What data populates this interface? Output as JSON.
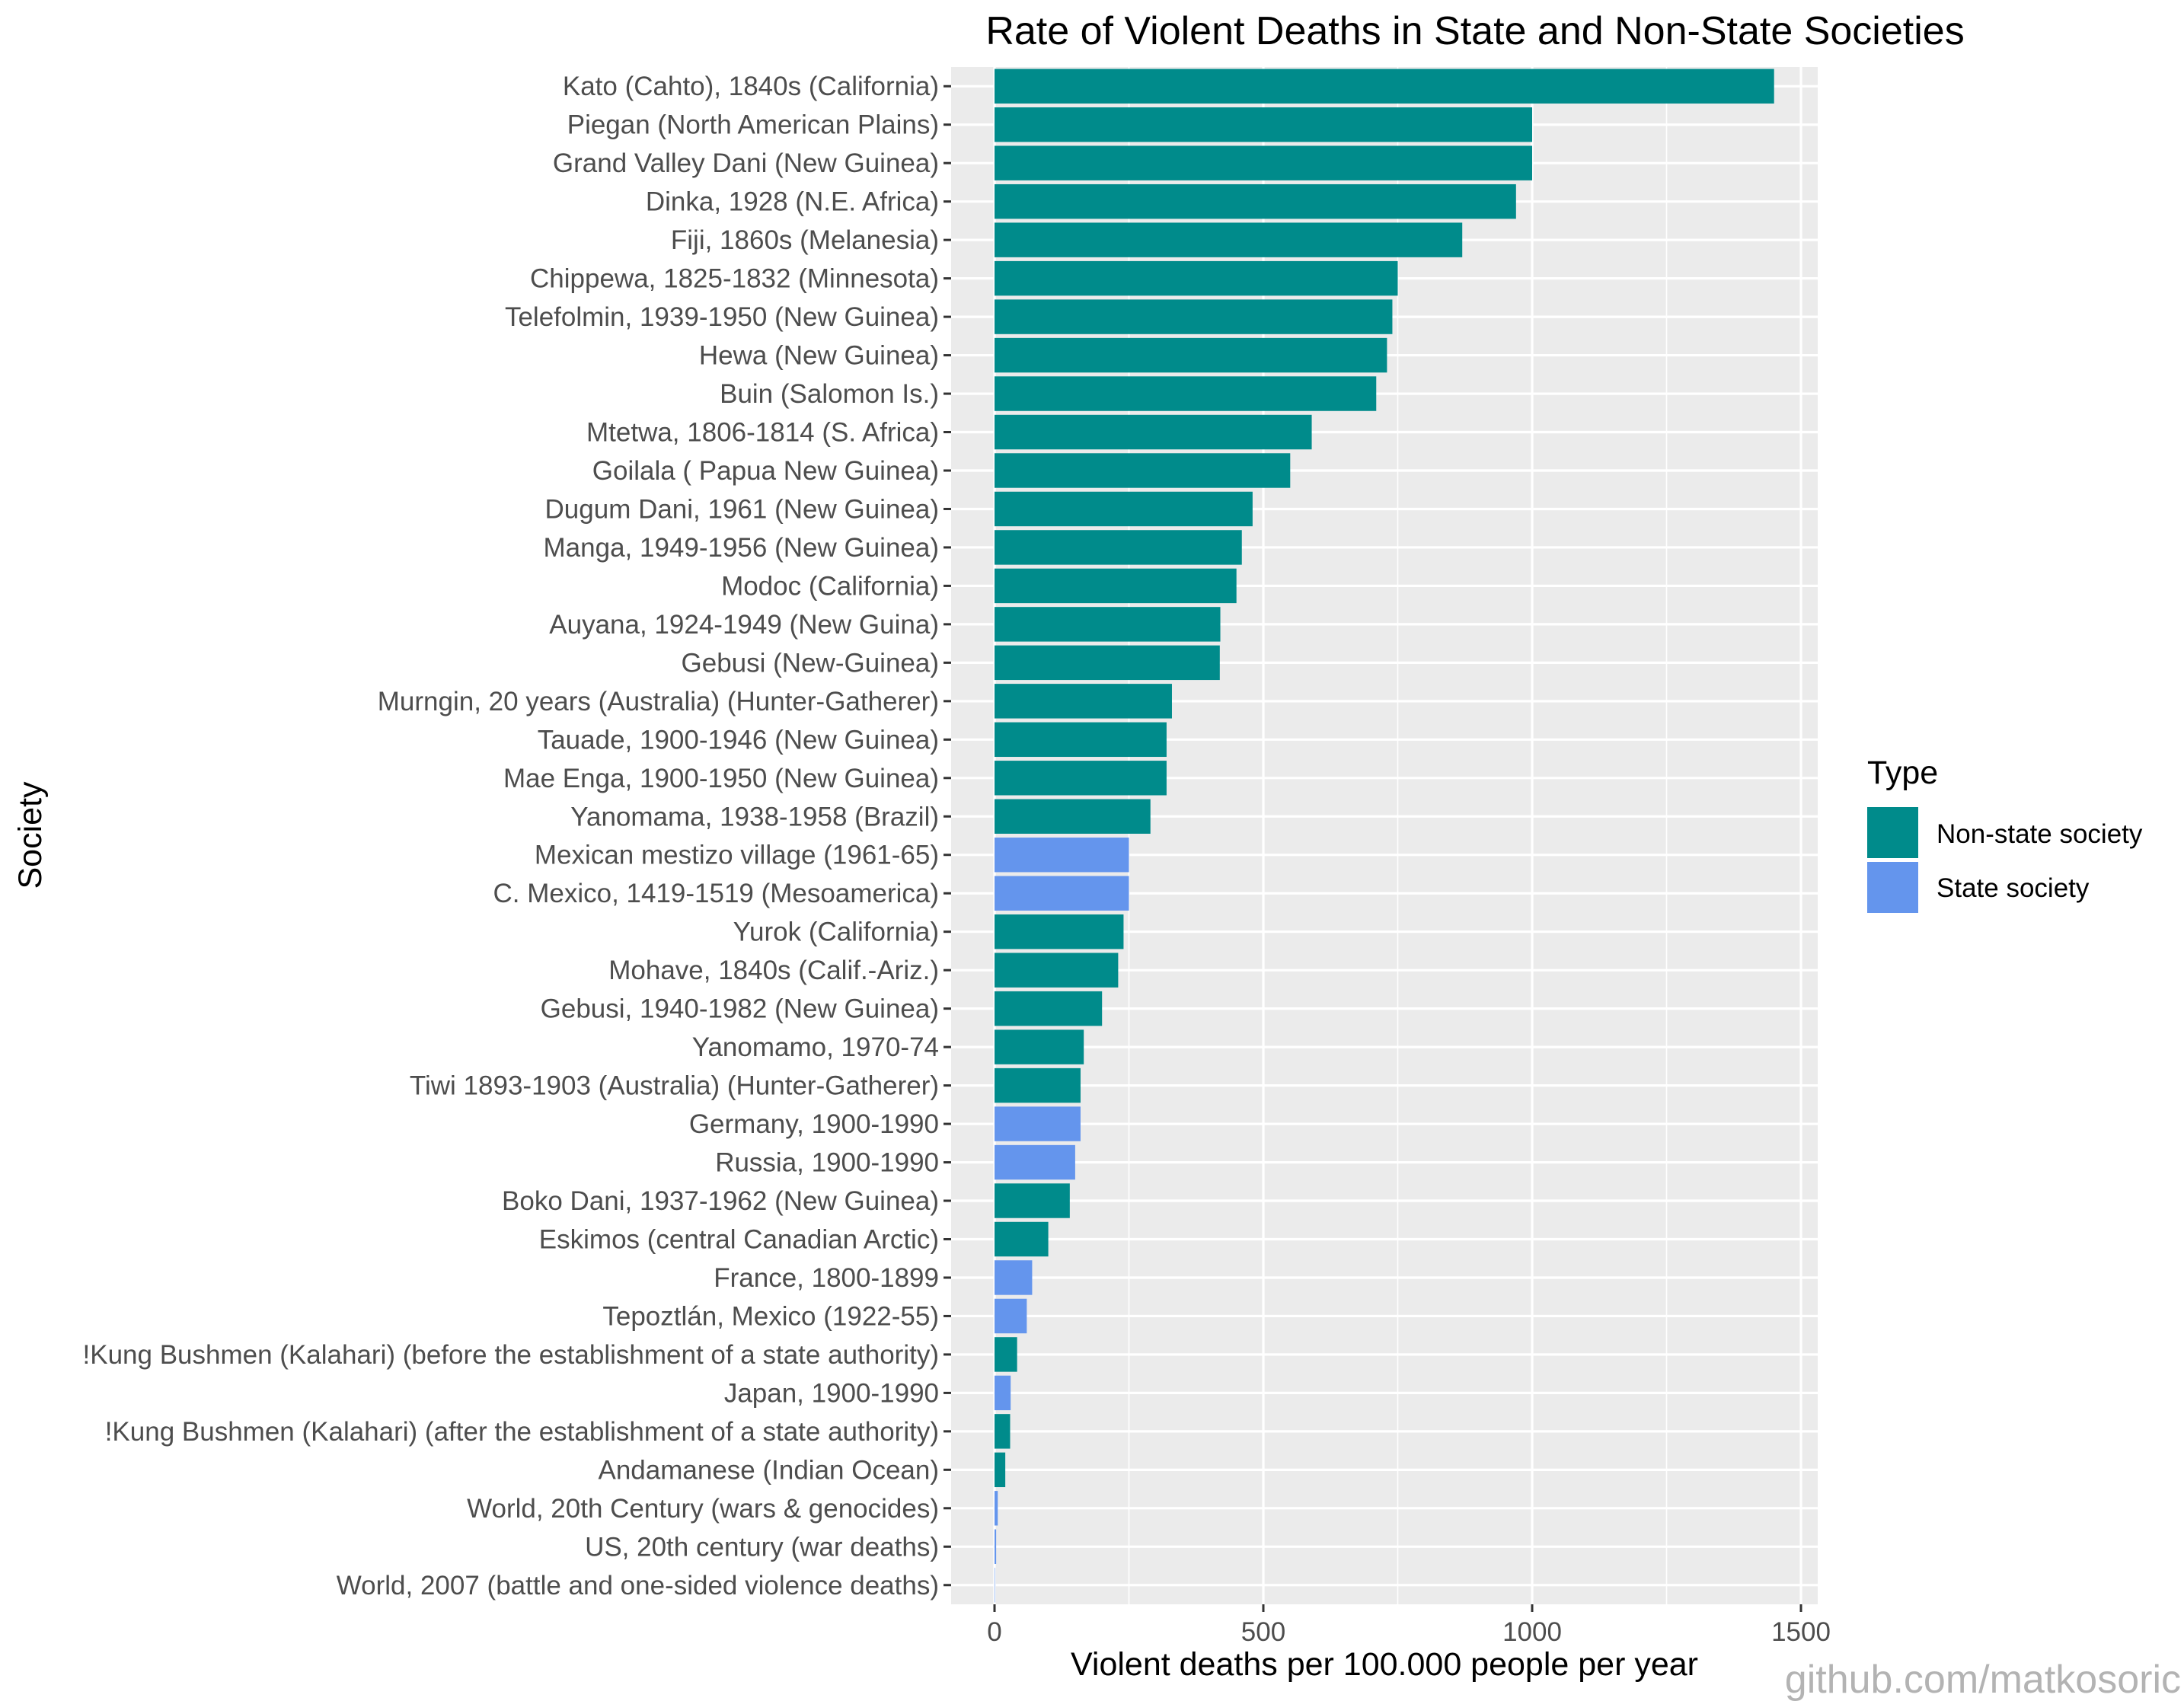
{
  "chart_data": {
    "type": "bar",
    "orientation": "horizontal",
    "title": "Rate of Violent Deaths in State and Non-State Societies",
    "xlabel": "Violent deaths per 100.000 people per year",
    "ylabel": "Society",
    "xlim": [
      0,
      1500
    ],
    "x_ticks": [
      0,
      500,
      1000,
      1500
    ],
    "grid": true,
    "legend": {
      "title": "Type",
      "position": "right",
      "entries": [
        {
          "label": "Non-state society",
          "color": "#008b8b"
        },
        {
          "label": "State society",
          "color": "#6495ed"
        }
      ]
    },
    "bars": [
      {
        "category": "Kato (Cahto), 1840s (California)",
        "value": 1450,
        "type": "Non-state society"
      },
      {
        "category": "Piegan (North American Plains)",
        "value": 1000,
        "type": "Non-state society"
      },
      {
        "category": "Grand Valley Dani (New Guinea)",
        "value": 1000,
        "type": "Non-state society"
      },
      {
        "category": "Dinka, 1928 (N.E. Africa)",
        "value": 970,
        "type": "Non-state society"
      },
      {
        "category": "Fiji, 1860s (Melanesia)",
        "value": 870,
        "type": "Non-state society"
      },
      {
        "category": "Chippewa, 1825-1832 (Minnesota)",
        "value": 750,
        "type": "Non-state society"
      },
      {
        "category": "Telefolmin, 1939-1950 (New Guinea)",
        "value": 740,
        "type": "Non-state society"
      },
      {
        "category": "Hewa (New Guinea)",
        "value": 730,
        "type": "Non-state society"
      },
      {
        "category": "Buin (Salomon Is.)",
        "value": 710,
        "type": "Non-state society"
      },
      {
        "category": "Mtetwa, 1806-1814 (S. Africa)",
        "value": 590,
        "type": "Non-state society"
      },
      {
        "category": "Goilala ( Papua New Guinea)",
        "value": 550,
        "type": "Non-state society"
      },
      {
        "category": "Dugum Dani, 1961 (New Guinea)",
        "value": 480,
        "type": "Non-state society"
      },
      {
        "category": "Manga, 1949-1956 (New Guinea)",
        "value": 460,
        "type": "Non-state society"
      },
      {
        "category": "Modoc (California)",
        "value": 450,
        "type": "Non-state society"
      },
      {
        "category": "Auyana, 1924-1949 (New Guina)",
        "value": 420,
        "type": "Non-state society"
      },
      {
        "category": "Gebusi (New-Guinea)",
        "value": 419,
        "type": "Non-state society"
      },
      {
        "category": "Murngin, 20 years (Australia) (Hunter-Gatherer)",
        "value": 330,
        "type": "Non-state society"
      },
      {
        "category": "Tauade, 1900-1946 (New Guinea)",
        "value": 320,
        "type": "Non-state society"
      },
      {
        "category": "Mae Enga, 1900-1950 (New Guinea)",
        "value": 320,
        "type": "Non-state society"
      },
      {
        "category": "Yanomama, 1938-1958 (Brazil)",
        "value": 290,
        "type": "Non-state society"
      },
      {
        "category": "Mexican mestizo village (1961-65)",
        "value": 250,
        "type": "State society"
      },
      {
        "category": "C. Mexico, 1419-1519 (Mesoamerica)",
        "value": 250,
        "type": "State society"
      },
      {
        "category": "Yurok (California)",
        "value": 240,
        "type": "Non-state society"
      },
      {
        "category": "Mohave, 1840s (Calif.-Ariz.)",
        "value": 230,
        "type": "Non-state society"
      },
      {
        "category": "Gebusi, 1940-1982 (New Guinea)",
        "value": 200,
        "type": "Non-state society"
      },
      {
        "category": "Yanomamo, 1970-74",
        "value": 166,
        "type": "Non-state society"
      },
      {
        "category": "Tiwi 1893-1903 (Australia) (Hunter-Gatherer)",
        "value": 160,
        "type": "Non-state society"
      },
      {
        "category": "Germany, 1900-1990",
        "value": 160,
        "type": "State society"
      },
      {
        "category": "Russia, 1900-1990",
        "value": 150,
        "type": "State society"
      },
      {
        "category": "Boko Dani, 1937-1962 (New Guinea)",
        "value": 140,
        "type": "Non-state society"
      },
      {
        "category": "Eskimos (central Canadian Arctic)",
        "value": 100,
        "type": "Non-state society"
      },
      {
        "category": "France, 1800-1899",
        "value": 70,
        "type": "State society"
      },
      {
        "category": "Tepoztlán, Mexico (1922-55)",
        "value": 60,
        "type": "State society"
      },
      {
        "category": "!Kung Bushmen (Kalahari) (before the establishment of a state authority)",
        "value": 42,
        "type": "Non-state society"
      },
      {
        "category": "Japan, 1900-1990",
        "value": 30,
        "type": "State society"
      },
      {
        "category": "!Kung Bushmen (Kalahari) (after the establishment of a state authority)",
        "value": 29,
        "type": "Non-state society"
      },
      {
        "category": "Andamanese (Indian Ocean)",
        "value": 20,
        "type": "Non-state society"
      },
      {
        "category": "World, 20th Century (wars & genocides)",
        "value": 6,
        "type": "State society"
      },
      {
        "category": "US, 20th century (war deaths)",
        "value": 3,
        "type": "State society"
      },
      {
        "category": "World, 2007 (battle and one-sided violence deaths)",
        "value": 0.3,
        "type": "State society"
      }
    ]
  },
  "watermark": "github.com/matkosoric"
}
